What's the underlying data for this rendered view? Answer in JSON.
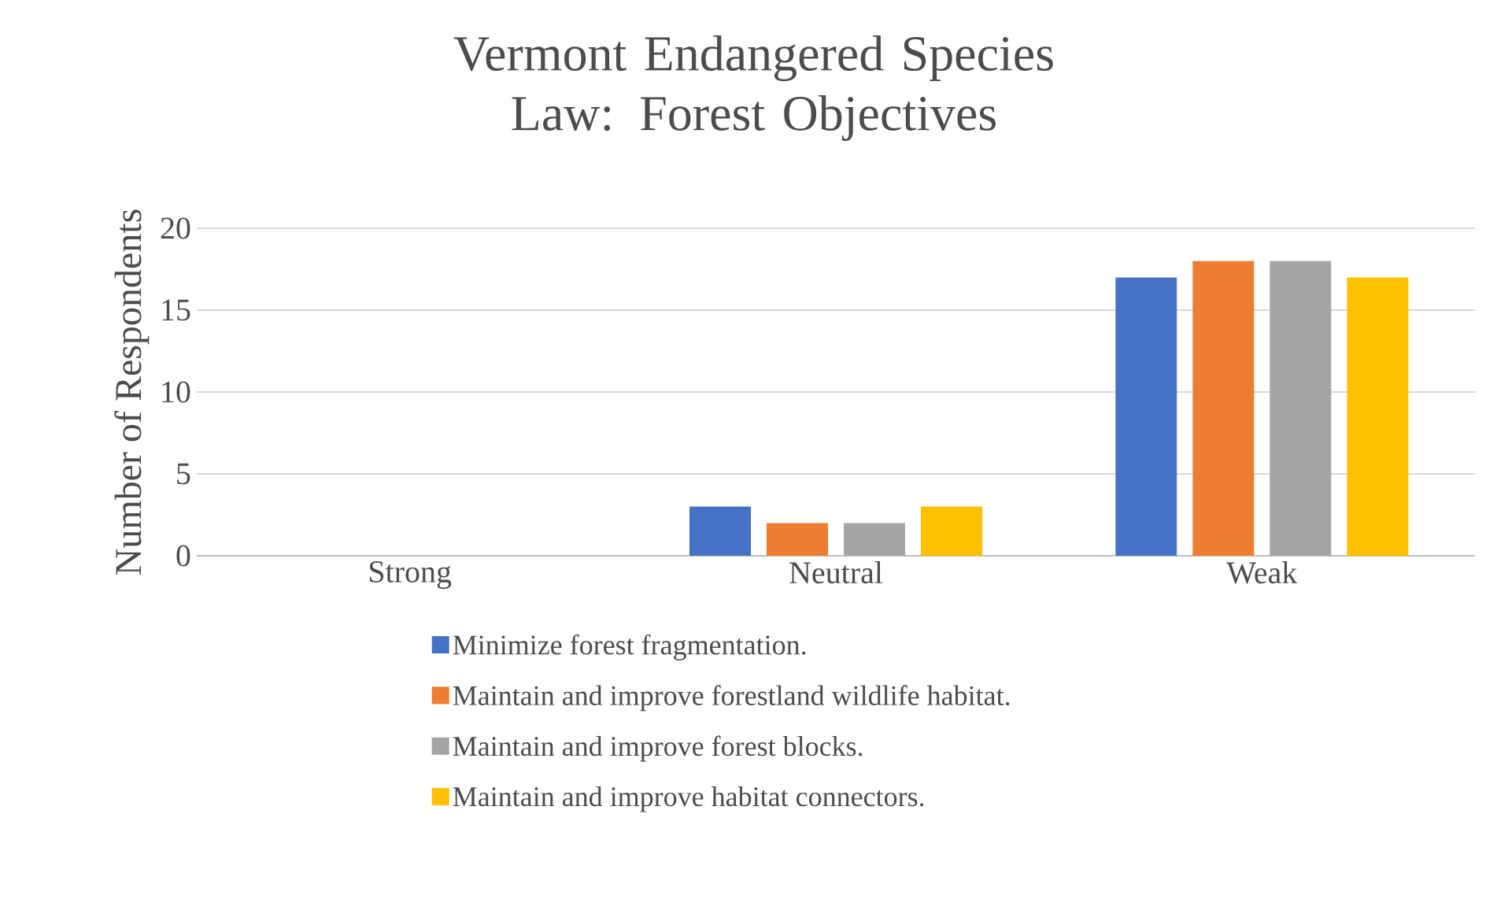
{
  "chart_data": {
    "type": "bar",
    "title": "Vermont Endangered Species Law: Forest Objectives",
    "ylabel": "Number of Respondents",
    "categories": [
      "Strong",
      "Neutral",
      "Weak"
    ],
    "series": [
      {
        "name": "Minimize forest fragmentation.",
        "color": "#4472c4",
        "values": [
          0,
          3,
          17
        ]
      },
      {
        "name": "Maintain and improve forestland wildlife habitat.",
        "color": "#ed7d31",
        "values": [
          0,
          2,
          18
        ]
      },
      {
        "name": "Maintain and improve forest blocks.",
        "color": "#a5a5a5",
        "values": [
          0,
          2,
          18
        ]
      },
      {
        "name": "Maintain and improve habitat connectors.",
        "color": "#ffc000",
        "values": [
          0,
          3,
          17
        ]
      }
    ],
    "ylim": [
      0,
      20
    ],
    "yticks": [
      0,
      5,
      10,
      15,
      20
    ],
    "grid": "y",
    "legend": "bottom"
  }
}
